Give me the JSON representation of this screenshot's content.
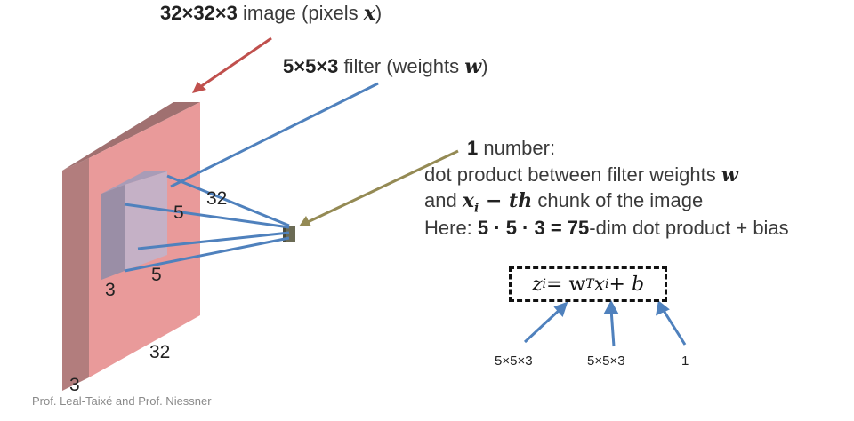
{
  "image_label": {
    "dims": "32×32×3",
    "text": " image (pixels ",
    "var": "x",
    "close": ")"
  },
  "filter_label": {
    "dims": "5×5×3",
    "text": " filter (weights ",
    "var": "w",
    "close": ")"
  },
  "number_note": {
    "line1_bold": "1",
    "line1": " number:",
    "line2": "dot product between filter weights ",
    "line2_var": "w",
    "line3_pre": "and ",
    "line3_var": "x",
    "line3_sub": "i",
    "line3_mid": " − th",
    "line3_post": " chunk of the image",
    "line4_pre": "Here: ",
    "line4_bold": "5 · 5 · 3 = 75",
    "line4_post": "-dim dot product + bias"
  },
  "formula": {
    "z": "z",
    "sub_i": "i",
    "eq": " = w",
    "sup_T": "T",
    "x": "x",
    "sub_i2": "i",
    "plus_b": " + b"
  },
  "dims": {
    "filter_w": "5",
    "filter_h": "5",
    "image_w": "32",
    "image_h": "32",
    "filter_depth": "3",
    "image_depth": "3"
  },
  "formula_dims": {
    "z_dim": "5×5×3",
    "w_dim": "5×5×3",
    "b_dim": "1"
  },
  "credit": "Prof. Leal-Taixé and Prof. Niessner",
  "colors": {
    "image_face": "#e99a9a",
    "image_side": "#b27d7d",
    "filter": "#a8a8c8",
    "blue_lines": "#4f81bd",
    "red_arrow": "#c0504d",
    "olive_arrow": "#948a54"
  }
}
